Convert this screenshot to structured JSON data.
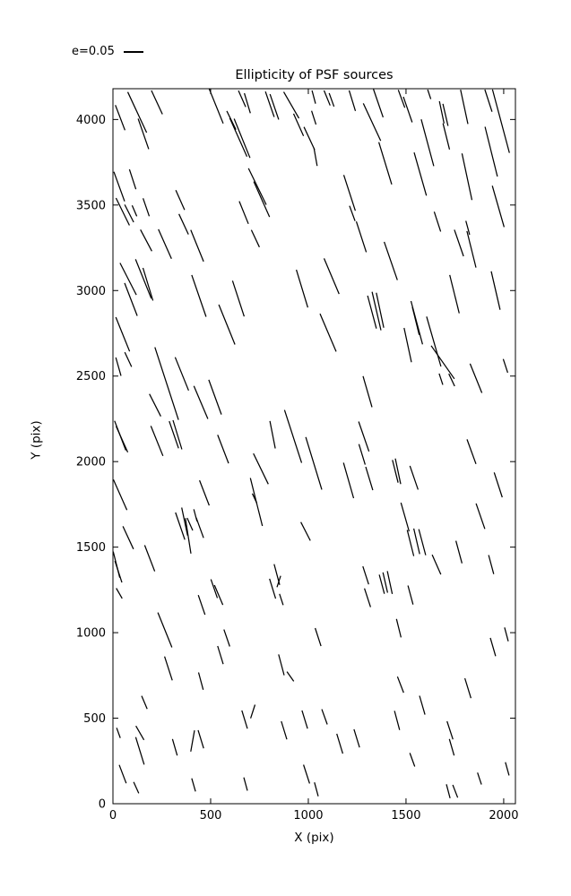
{
  "colors": {
    "stroke": "#000000",
    "background": "#ffffff"
  },
  "chart_data": {
    "type": "scatter",
    "subtype": "whisker-quiver",
    "title": "Ellipticity of PSF sources",
    "xlabel": "X (pix)",
    "ylabel": "Y (pix)",
    "xlim": [
      0,
      2060
    ],
    "ylim": [
      0,
      4180
    ],
    "xticks": [
      0,
      500,
      1000,
      1500,
      2000
    ],
    "yticks": [
      0,
      500,
      1000,
      1500,
      2000,
      2500,
      3000,
      3500,
      4000
    ],
    "grid": false,
    "legend": {
      "label": "e=0.05",
      "e_ref": 0.05,
      "position": "upper-left-outside"
    },
    "whisker_format": [
      "x_pix",
      "y_pix",
      "theta_deg_from_vertical_positive_tilts_top_toward_minus_x",
      "ellipticity_e"
    ],
    "whiskers": [
      [
        124,
        4042,
        25,
        0.125
      ],
      [
        225,
        4100,
        25,
        0.073
      ],
      [
        37,
        4011,
        21,
        0.075
      ],
      [
        156,
        3916,
        19,
        0.09
      ],
      [
        528,
        4079,
        22,
        0.105
      ],
      [
        606,
        3995,
        26,
        0.058
      ],
      [
        661,
        4121,
        24,
        0.05
      ],
      [
        688,
        4095,
        17,
        0.058
      ],
      [
        803,
        4089,
        19,
        0.075
      ],
      [
        826,
        4074,
        19,
        0.075
      ],
      [
        913,
        4084,
        30,
        0.085
      ],
      [
        950,
        3969,
        24,
        0.068
      ],
      [
        1005,
        3890,
        25,
        0.07
      ],
      [
        642,
        3896,
        24,
        0.118
      ],
      [
        661,
        3890,
        22,
        0.118
      ],
      [
        739,
        3608,
        26,
        0.113
      ],
      [
        761,
        3534,
        24,
        0.108
      ],
      [
        32,
        3608,
        20,
        0.088
      ],
      [
        101,
        3650,
        18,
        0.058
      ],
      [
        50,
        3461,
        26,
        0.085
      ],
      [
        83,
        3451,
        27,
        0.055
      ],
      [
        110,
        3466,
        23,
        0.033
      ],
      [
        170,
        3487,
        19,
        0.053
      ],
      [
        344,
        3529,
        24,
        0.06
      ],
      [
        362,
        3388,
        25,
        0.063
      ],
      [
        670,
        3456,
        22,
        0.068
      ],
      [
        1028,
        4011,
        18,
        0.04
      ],
      [
        1037,
        3780,
        10,
        0.05
      ],
      [
        1028,
        4131,
        15,
        0.038
      ],
      [
        1096,
        4126,
        22,
        0.045
      ],
      [
        1119,
        4115,
        20,
        0.04
      ],
      [
        1225,
        4110,
        17,
        0.06
      ],
      [
        1326,
        3985,
        25,
        0.115
      ],
      [
        1358,
        4095,
        19,
        0.083
      ],
      [
        1394,
        3744,
        17,
        0.123
      ],
      [
        1477,
        4121,
        20,
        0.053
      ],
      [
        1509,
        4058,
        19,
        0.075
      ],
      [
        1573,
        3681,
        16,
        0.125
      ],
      [
        1610,
        3864,
        15,
        0.135
      ],
      [
        1619,
        4147,
        18,
        0.028
      ],
      [
        1683,
        4042,
        12,
        0.063
      ],
      [
        1702,
        4027,
        13,
        0.063
      ],
      [
        1706,
        3901,
        14,
        0.075
      ],
      [
        1798,
        4074,
        12,
        0.098
      ],
      [
        1812,
        3665,
        12,
        0.133
      ],
      [
        1922,
        4110,
        18,
        0.065
      ],
      [
        1986,
        3990,
        15,
        0.183
      ],
      [
        1936,
        3812,
        14,
        0.143
      ],
      [
        1972,
        3492,
        16,
        0.12
      ],
      [
        1661,
        3403,
        18,
        0.058
      ],
      [
        1816,
        3367,
        15,
        0.04
      ],
      [
        1211,
        3571,
        18,
        0.105
      ],
      [
        1225,
        3451,
        20,
        0.045
      ],
      [
        170,
        3293,
        28,
        0.068
      ],
      [
        266,
        3272,
        24,
        0.09
      ],
      [
        431,
        3262,
        22,
        0.095
      ],
      [
        729,
        3304,
        25,
        0.053
      ],
      [
        78,
        3068,
        27,
        0.1
      ],
      [
        156,
        3068,
        22,
        0.118
      ],
      [
        92,
        2948,
        21,
        0.098
      ],
      [
        179,
        3037,
        17,
        0.095
      ],
      [
        50,
        2744,
        22,
        0.103
      ],
      [
        78,
        2597,
        25,
        0.045
      ],
      [
        28,
        2555,
        16,
        0.053
      ],
      [
        275,
        2456,
        18,
        0.213
      ],
      [
        353,
        2513,
        22,
        0.1
      ],
      [
        440,
        2969,
        19,
        0.123
      ],
      [
        583,
        2801,
        22,
        0.12
      ],
      [
        642,
        2953,
        18,
        0.105
      ],
      [
        968,
        3011,
        17,
        0.11
      ],
      [
        1271,
        3314,
        18,
        0.09
      ],
      [
        1422,
        3173,
        19,
        0.113
      ],
      [
        1119,
        3084,
        23,
        0.108
      ],
      [
        1326,
        2874,
        15,
        0.095
      ],
      [
        1349,
        2880,
        13,
        0.11
      ],
      [
        1367,
        2885,
        12,
        0.1
      ],
      [
        1748,
        2979,
        14,
        0.11
      ],
      [
        1771,
        3278,
        19,
        0.078
      ],
      [
        1835,
        3241,
        14,
        0.105
      ],
      [
        1959,
        3000,
        13,
        0.11
      ],
      [
        1101,
        2754,
        23,
        0.115
      ],
      [
        1555,
        2812,
        15,
        0.125
      ],
      [
        1550,
        2822,
        14,
        0.08
      ],
      [
        1642,
        2702,
        16,
        0.145
      ],
      [
        1688,
        2581,
        35,
        0.113
      ],
      [
        1509,
        2681,
        12,
        0.098
      ],
      [
        2009,
        2560,
        18,
        0.04
      ],
      [
        216,
        2330,
        27,
        0.07
      ],
      [
        450,
        2346,
        23,
        0.1
      ],
      [
        523,
        2377,
        20,
        0.103
      ],
      [
        225,
        2121,
        22,
        0.09
      ],
      [
        312,
        2157,
        19,
        0.08
      ],
      [
        330,
        2157,
        17,
        0.085
      ],
      [
        37,
        2152,
        21,
        0.088
      ],
      [
        46,
        2131,
        24,
        0.08
      ],
      [
        37,
        1806,
        24,
        0.093
      ],
      [
        468,
        1817,
        21,
        0.075
      ],
      [
        564,
        2073,
        21,
        0.085
      ],
      [
        757,
        1958,
        26,
        0.095
      ],
      [
        734,
        1764,
        14,
        0.138
      ],
      [
        725,
        1785,
        25,
        0.03
      ],
      [
        817,
        2157,
        11,
        0.078
      ],
      [
        922,
        2147,
        18,
        0.155
      ],
      [
        1028,
        1990,
        17,
        0.153
      ],
      [
        422,
        1686,
        15,
        0.035
      ],
      [
        1303,
        2409,
        16,
        0.09
      ],
      [
        1679,
        2482,
        18,
        0.033
      ],
      [
        1734,
        2477,
        25,
        0.038
      ],
      [
        1858,
        2487,
        22,
        0.088
      ],
      [
        1284,
        2147,
        19,
        0.088
      ],
      [
        1275,
        2042,
        17,
        0.06
      ],
      [
        1312,
        1901,
        17,
        0.068
      ],
      [
        1206,
        1890,
        16,
        0.103
      ],
      [
        1445,
        1943,
        14,
        0.065
      ],
      [
        1459,
        1943,
        12,
        0.073
      ],
      [
        1541,
        1906,
        19,
        0.07
      ],
      [
        1835,
        2058,
        20,
        0.073
      ],
      [
        1972,
        1864,
        18,
        0.073
      ],
      [
        1881,
        1681,
        19,
        0.075
      ],
      [
        1495,
        1676,
        16,
        0.083
      ],
      [
        78,
        1555,
        25,
        0.07
      ],
      [
        188,
        1435,
        21,
        0.078
      ],
      [
        344,
        1623,
        19,
        0.08
      ],
      [
        367,
        1649,
        12,
        0.08
      ],
      [
        394,
        1634,
        24,
        0.038
      ],
      [
        385,
        1566,
        9,
        0.1
      ],
      [
        445,
        1613,
        20,
        0.06
      ],
      [
        986,
        1592,
        27,
        0.058
      ],
      [
        839,
        1340,
        15,
        0.06
      ],
      [
        817,
        1257,
        17,
        0.058
      ],
      [
        849,
        1299,
        -18,
        0.033
      ],
      [
        862,
        1194,
        18,
        0.033
      ],
      [
        518,
        1257,
        19,
        0.055
      ],
      [
        541,
        1220,
        23,
        0.06
      ],
      [
        454,
        1162,
        19,
        0.058
      ],
      [
        266,
        1016,
        22,
        0.105
      ],
      [
        583,
        969,
        19,
        0.05
      ],
      [
        550,
        869,
        17,
        0.053
      ],
      [
        18,
        1398,
        14,
        0.075
      ],
      [
        28,
        1356,
        18,
        0.063
      ],
      [
        32,
        1230,
        30,
        0.033
      ],
      [
        1523,
        1524,
        14,
        0.075
      ],
      [
        1555,
        1534,
        13,
        0.073
      ],
      [
        1583,
        1529,
        15,
        0.075
      ],
      [
        1656,
        1398,
        24,
        0.06
      ],
      [
        1771,
        1471,
        15,
        0.065
      ],
      [
        1936,
        1398,
        15,
        0.055
      ],
      [
        1294,
        1335,
        18,
        0.053
      ],
      [
        1303,
        1204,
        18,
        0.055
      ],
      [
        1376,
        1283,
        15,
        0.055
      ],
      [
        1394,
        1293,
        13,
        0.058
      ],
      [
        1417,
        1293,
        12,
        0.065
      ],
      [
        1523,
        1220,
        15,
        0.055
      ],
      [
        1463,
        1026,
        14,
        0.053
      ],
      [
        1050,
        974,
        18,
        0.053
      ],
      [
        1945,
        916,
        16,
        0.053
      ],
      [
        2014,
        990,
        15,
        0.04
      ],
      [
        284,
        791,
        18,
        0.07
      ],
      [
        450,
        717,
        15,
        0.05
      ],
      [
        161,
        592,
        23,
        0.04
      ],
      [
        862,
        812,
        15,
        0.06
      ],
      [
        908,
        744,
        35,
        0.033
      ],
      [
        28,
        414,
        20,
        0.03
      ],
      [
        138,
        414,
        30,
        0.045
      ],
      [
        138,
        309,
        17,
        0.08
      ],
      [
        50,
        173,
        21,
        0.055
      ],
      [
        119,
        94,
        24,
        0.035
      ],
      [
        317,
        330,
        16,
        0.048
      ],
      [
        408,
        367,
        -10,
        0.06
      ],
      [
        450,
        377,
        17,
        0.053
      ],
      [
        413,
        110,
        16,
        0.038
      ],
      [
        674,
        492,
        17,
        0.053
      ],
      [
        716,
        539,
        -18,
        0.04
      ],
      [
        679,
        115,
        15,
        0.038
      ],
      [
        876,
        429,
        17,
        0.053
      ],
      [
        982,
        492,
        17,
        0.053
      ],
      [
        991,
        173,
        18,
        0.055
      ],
      [
        1472,
        696,
        21,
        0.048
      ],
      [
        1583,
        576,
        16,
        0.055
      ],
      [
        1454,
        487,
        15,
        0.055
      ],
      [
        1817,
        675,
        17,
        0.058
      ],
      [
        1083,
        508,
        20,
        0.045
      ],
      [
        1161,
        351,
        17,
        0.058
      ],
      [
        1248,
        382,
        17,
        0.053
      ],
      [
        1532,
        257,
        20,
        0.04
      ],
      [
        1725,
        429,
        18,
        0.053
      ],
      [
        1734,
        330,
        16,
        0.048
      ],
      [
        2018,
        204,
        16,
        0.038
      ],
      [
        1876,
        147,
        18,
        0.035
      ],
      [
        1716,
        73,
        15,
        0.04
      ],
      [
        1752,
        73,
        21,
        0.038
      ],
      [
        1041,
        84,
        15,
        0.04
      ]
    ]
  }
}
